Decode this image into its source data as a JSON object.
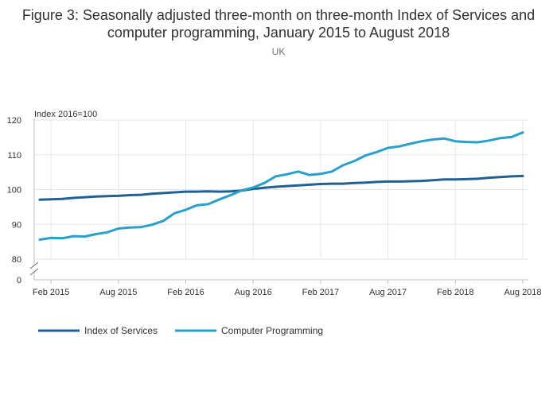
{
  "chart_data": {
    "type": "line",
    "title": "Figure 3: Seasonally adjusted three-month on three-month Index of Services and computer programming, January 2015 to August 2018",
    "subtitle": "UK",
    "ylabel": "Index 2016=100",
    "ylim": [
      80,
      120
    ],
    "y_break_value": 0,
    "yticks": [
      "80",
      "90",
      "100",
      "110",
      "120",
      "0"
    ],
    "x_tick_labels": [
      "Feb 2015",
      "Aug 2015",
      "Feb 2016",
      "Aug 2016",
      "Feb 2017",
      "Aug 2017",
      "Feb 2018",
      "Aug 2018"
    ],
    "x_tick_month_index": [
      1,
      7,
      13,
      19,
      25,
      31,
      37,
      43
    ],
    "grid": true,
    "legend_position": "bottom-left",
    "colors": {
      "index_of_services": "#206095",
      "computer_programming": "#27a0cc"
    },
    "series": [
      {
        "name": "Index of Services",
        "color": "#206095",
        "values": [
          97.1,
          97.2,
          97.3,
          97.6,
          97.8,
          98.0,
          98.1,
          98.2,
          98.4,
          98.5,
          98.8,
          99.0,
          99.2,
          99.4,
          99.4,
          99.5,
          99.4,
          99.5,
          99.7,
          100.2,
          100.5,
          100.8,
          101.0,
          101.2,
          101.4,
          101.6,
          101.7,
          101.7,
          101.9,
          102.0,
          102.2,
          102.3,
          102.3,
          102.4,
          102.5,
          102.7,
          102.9,
          102.9,
          103.0,
          103.1,
          103.4,
          103.6,
          103.8,
          103.9
        ]
      },
      {
        "name": "Computer Programming",
        "color": "#27a0cc",
        "values": [
          85.6,
          86.1,
          86.0,
          86.6,
          86.5,
          87.2,
          87.7,
          88.8,
          89.1,
          89.2,
          89.9,
          91.0,
          93.2,
          94.2,
          95.5,
          95.8,
          97.2,
          98.4,
          99.8,
          100.6,
          101.9,
          103.8,
          104.4,
          105.2,
          104.2,
          104.5,
          105.2,
          107.0,
          108.2,
          109.8,
          110.8,
          112.0,
          112.4,
          113.2,
          113.9,
          114.4,
          114.7,
          113.9,
          113.7,
          113.6,
          114.1,
          114.8,
          115.1,
          116.4
        ]
      }
    ]
  }
}
